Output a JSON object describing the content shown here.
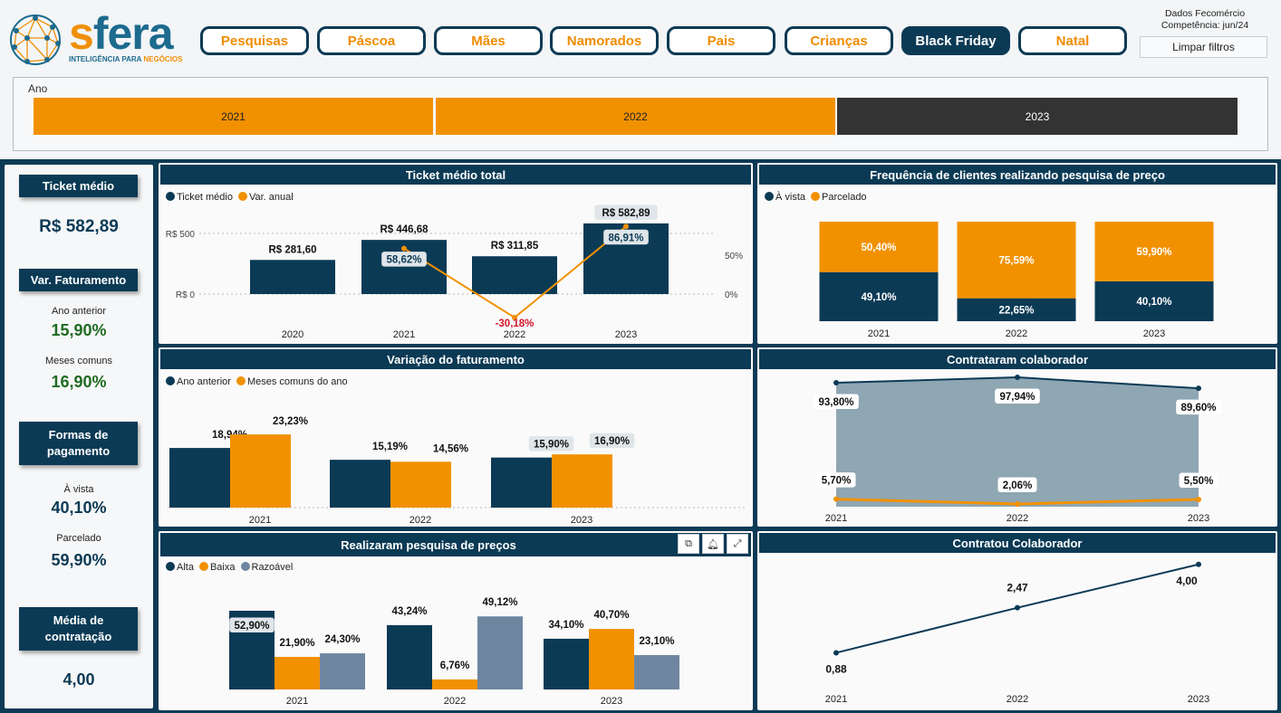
{
  "colors": {
    "navy": "#0b3a55",
    "orange": "#f29100",
    "gray": "#6f86a0",
    "area": "#8fa6b3",
    "dark": "#333333"
  },
  "brand": {
    "name": "sfera",
    "tag_prefix": "INTELIGÊNCIA PARA ",
    "tag_highlight": "NEGÓCIOS",
    "watermark": "INTELIGÊNCIA PARA NEGÓCIOS"
  },
  "nav": {
    "items": [
      {
        "label": "Pesquisas",
        "active": false
      },
      {
        "label": "Páscoa",
        "active": false
      },
      {
        "label": "Mães",
        "active": false
      },
      {
        "label": "Namorados",
        "active": false
      },
      {
        "label": "Pais",
        "active": false
      },
      {
        "label": "Crianças",
        "active": false
      },
      {
        "label": "Black Friday",
        "active": true
      },
      {
        "label": "Natal",
        "active": false
      }
    ]
  },
  "meta": {
    "source": "Dados Fecomércio",
    "competencia": "Competência: jun/24",
    "clear_filters": "Limpar filtros"
  },
  "year_slicer": {
    "title": "Ano",
    "options": [
      {
        "label": "2021",
        "selected": false
      },
      {
        "label": "2022",
        "selected": false
      },
      {
        "label": "2023",
        "selected": true
      }
    ]
  },
  "sidebar": {
    "ticket_title": "Ticket médio",
    "ticket_value": "R$ 582,89",
    "fat_title": "Var. Faturamento",
    "ano_anterior_label": "Ano anterior",
    "ano_anterior_value": "15,90%",
    "meses_label": "Meses comuns",
    "meses_value": "16,90%",
    "formas_title_l1": "Formas de",
    "formas_title_l2": "pagamento",
    "avista_label": "À vista",
    "avista_value": "40,10%",
    "parcelado_label": "Parcelado",
    "parcelado_value": "59,90%",
    "media_title_l1": "Média de",
    "media_title_l2": "contratação",
    "media_value": "4,00"
  },
  "panels": {
    "ticket": {
      "title": "Ticket médio total",
      "legend": [
        "Ticket médio",
        "Var. anual"
      ]
    },
    "freq": {
      "title": "Frequência de clientes realizando pesquisa de preço",
      "legend": [
        "À vista",
        "Parcelado"
      ]
    },
    "var": {
      "title": "Variação do faturamento",
      "legend": [
        "Ano anterior",
        "Meses comuns do ano"
      ]
    },
    "contrataram": {
      "title": "Contrataram colaborador"
    },
    "pesquisa": {
      "title": "Realizaram pesquisa de preços",
      "legend": [
        "Alta",
        "Baixa",
        "Razoável"
      ]
    },
    "contratou": {
      "title": "Contratou Colaborador"
    }
  },
  "chart_data": [
    {
      "id": "ticket",
      "type": "bar",
      "categories": [
        "2020",
        "2021",
        "2022",
        "2023"
      ],
      "series": [
        {
          "name": "Ticket médio",
          "values": [
            281.6,
            446.68,
            311.85,
            582.89
          ],
          "labels": [
            "R$ 281,60",
            "R$ 446,68",
            "R$ 311,85",
            "R$ 582,89"
          ]
        },
        {
          "name": "Var. anual",
          "type": "line",
          "values": [
            null,
            58.62,
            -30.18,
            86.91
          ],
          "labels": [
            "",
            "58,62%",
            "-30,18%",
            "86,91%"
          ]
        }
      ],
      "y_ticks": [
        "R$ 0",
        "R$ 500"
      ],
      "y2_ticks": [
        "0%",
        "50%"
      ],
      "ylim": [
        0,
        600
      ]
    },
    {
      "id": "freq",
      "type": "bar",
      "stacked": true,
      "percent": true,
      "categories": [
        "2021",
        "2022",
        "2023"
      ],
      "series": [
        {
          "name": "À vista",
          "values": [
            49.1,
            22.65,
            40.1
          ],
          "labels": [
            "49,10%",
            "22,65%",
            "40,10%"
          ]
        },
        {
          "name": "Parcelado",
          "values": [
            50.4,
            75.59,
            59.9
          ],
          "labels": [
            "50,40%",
            "75,59%",
            "59,90%"
          ]
        }
      ]
    },
    {
      "id": "var",
      "type": "bar",
      "categories": [
        "2021",
        "2022",
        "2023"
      ],
      "series": [
        {
          "name": "Ano anterior",
          "values": [
            18.94,
            15.19,
            15.9
          ],
          "labels": [
            "18,94%",
            "15,19%",
            "15,90%"
          ]
        },
        {
          "name": "Meses comuns do ano",
          "values": [
            23.23,
            14.56,
            16.9
          ],
          "labels": [
            "23,23%",
            "14,56%",
            "16,90%"
          ]
        }
      ],
      "ylim": [
        0,
        25
      ]
    },
    {
      "id": "contrataram",
      "type": "area",
      "categories": [
        "2021",
        "2022",
        "2023"
      ],
      "series": [
        {
          "values": [
            93.8,
            97.94,
            89.6
          ],
          "labels": [
            "93,80%",
            "97,94%",
            "89,60%"
          ]
        },
        {
          "values": [
            5.7,
            2.06,
            5.5
          ],
          "labels": [
            "5,70%",
            "2,06%",
            "5,50%"
          ]
        }
      ],
      "ylim": [
        0,
        100
      ]
    },
    {
      "id": "pesquisa",
      "type": "bar",
      "categories": [
        "2021",
        "2022",
        "2023"
      ],
      "series": [
        {
          "name": "Alta",
          "values": [
            52.9,
            43.24,
            34.1
          ],
          "labels": [
            "52,90%",
            "43,24%",
            "34,10%"
          ]
        },
        {
          "name": "Baixa",
          "values": [
            21.9,
            6.76,
            40.7
          ],
          "labels": [
            "21,90%",
            "6,76%",
            "40,70%"
          ]
        },
        {
          "name": "Razoável",
          "values": [
            24.3,
            49.12,
            23.1
          ],
          "labels": [
            "24,30%",
            "49,12%",
            "23,10%"
          ]
        }
      ],
      "ylim": [
        0,
        60
      ]
    },
    {
      "id": "contratou",
      "type": "line",
      "categories": [
        "2021",
        "2022",
        "2023"
      ],
      "series": [
        {
          "values": [
            0.88,
            2.47,
            4.0
          ],
          "labels": [
            "0,88",
            "2,47",
            "4,00"
          ]
        }
      ],
      "ylim": [
        0,
        4.5
      ]
    }
  ]
}
